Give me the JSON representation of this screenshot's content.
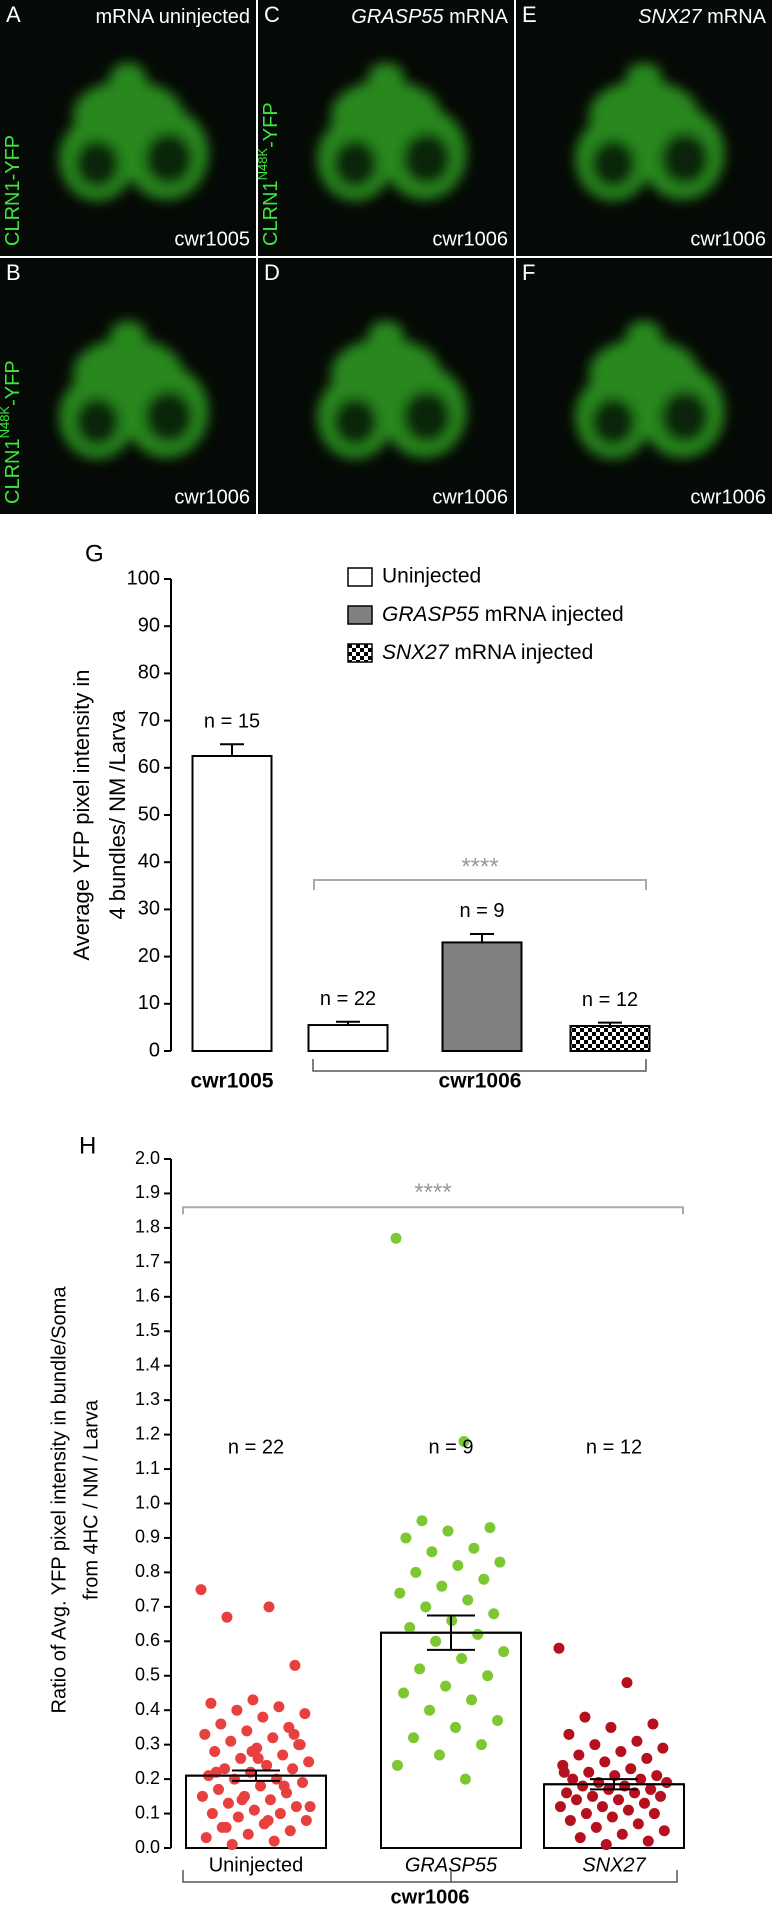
{
  "panels": [
    {
      "letter": "A",
      "title": [
        "mRNA uninjected"
      ],
      "side_label": [
        "CLRN1-YFP"
      ],
      "line": "cwr1005"
    },
    {
      "letter": "C",
      "title": [
        "GRASP55",
        " mRNA"
      ],
      "side_label": [
        "CLRN1",
        "N48K",
        "-YFP"
      ],
      "line": "cwr1006"
    },
    {
      "letter": "E",
      "title": [
        "SNX27",
        " mRNA"
      ],
      "side_label": [],
      "line": "cwr1006"
    },
    {
      "letter": "B",
      "title": [],
      "side_label": [
        "CLRN1",
        "N48K",
        "-YFP"
      ],
      "line": "cwr1006"
    },
    {
      "letter": "D",
      "title": [],
      "side_label": [],
      "line": "cwr1006"
    },
    {
      "letter": "F",
      "title": [],
      "side_label": [],
      "line": "cwr1006"
    }
  ],
  "chart_data": [
    {
      "type": "bar",
      "panel_label": "G",
      "y_label": [
        "Average YFP pixel intensity in",
        "4 bundles/ NM /Larva"
      ],
      "categories": [
        "cwr1005",
        null,
        null,
        null
      ],
      "group_label": "cwr1006",
      "n_labels": [
        "n = 15",
        "n = 22",
        "n = 9",
        "n = 12"
      ],
      "significance": "****",
      "series": [
        {
          "name": "Uninjected",
          "color": "#ffffff",
          "values": [
            62.5,
            5.5,
            null,
            null
          ],
          "errors": [
            2.5,
            0.7,
            null,
            null
          ]
        },
        {
          "name": "GRASP55 mRNA injected",
          "color": "#808080",
          "values": [
            null,
            null,
            23,
            null
          ],
          "errors": [
            null,
            null,
            1.8,
            null
          ]
        },
        {
          "name": "SNX27 mRNA injected",
          "color": "#000000",
          "pattern": "checkerboard",
          "values": [
            null,
            null,
            null,
            5.3
          ],
          "errors": [
            null,
            null,
            null,
            0.7
          ]
        }
      ],
      "ylim": [
        0,
        100
      ],
      "yticks": [
        0,
        10,
        20,
        30,
        40,
        50,
        60,
        70,
        80,
        90,
        100
      ],
      "legend": "top-right"
    },
    {
      "type": "bar-scatter",
      "panel_label": "H",
      "y_label": [
        "Ratio of Avg. YFP pixel intensity in bundle/Soma",
        "from 4HC / NM / Larva"
      ],
      "categories": [
        "Uninjected",
        "GRASP55",
        "SNX27"
      ],
      "group_label": "cwr1006",
      "n_labels": [
        "n = 22",
        "n = 9",
        "n = 12"
      ],
      "significance": "****",
      "values": [
        0.21,
        0.625,
        0.185
      ],
      "errors": [
        0.015,
        0.05,
        0.015
      ],
      "colors": [
        "#e8403f",
        "#7cc832",
        "#b5101e"
      ],
      "points": [
        [
          0.75,
          0.7,
          0.67,
          0.53,
          0.43,
          0.42,
          0.41,
          0.4,
          0.39,
          0.38,
          0.36,
          0.35,
          0.34,
          0.33,
          0.32,
          0.31,
          0.3,
          0.29,
          0.28,
          0.27,
          0.26,
          0.25,
          0.24,
          0.23,
          0.23,
          0.22,
          0.21,
          0.2,
          0.2,
          0.19,
          0.18,
          0.17,
          0.16,
          0.15,
          0.15,
          0.14,
          0.13,
          0.12,
          0.11,
          0.1,
          0.1,
          0.09,
          0.08,
          0.07,
          0.06,
          0.05,
          0.04,
          0.03,
          0.02,
          0.01,
          0.3,
          0.26,
          0.22,
          0.18,
          0.14,
          0.12,
          0.08,
          0.06,
          0.33,
          0.28
        ],
        [
          1.77,
          1.18,
          0.95,
          0.93,
          0.92,
          0.9,
          0.87,
          0.86,
          0.83,
          0.82,
          0.8,
          0.78,
          0.76,
          0.74,
          0.72,
          0.7,
          0.68,
          0.66,
          0.64,
          0.62,
          0.6,
          0.57,
          0.55,
          0.52,
          0.5,
          0.47,
          0.45,
          0.43,
          0.4,
          0.37,
          0.35,
          0.32,
          0.3,
          0.27,
          0.24,
          0.2
        ],
        [
          0.58,
          0.48,
          0.38,
          0.36,
          0.35,
          0.33,
          0.31,
          0.3,
          0.29,
          0.28,
          0.27,
          0.26,
          0.25,
          0.24,
          0.23,
          0.22,
          0.21,
          0.21,
          0.2,
          0.2,
          0.19,
          0.19,
          0.18,
          0.18,
          0.17,
          0.17,
          0.16,
          0.16,
          0.15,
          0.15,
          0.14,
          0.14,
          0.13,
          0.12,
          0.12,
          0.11,
          0.1,
          0.1,
          0.09,
          0.08,
          0.07,
          0.06,
          0.05,
          0.04,
          0.03,
          0.02,
          0.01,
          0.22
        ]
      ],
      "ylim": [
        0,
        2
      ],
      "yticks": [
        {
          "value": 0,
          "label": "0.0"
        },
        0.1,
        0.2,
        0.3,
        0.4,
        0.5,
        0.6,
        0.7,
        0.8,
        0.9,
        {
          "value": 1,
          "label": "1.0"
        },
        1.1,
        1.2,
        1.3,
        1.4,
        1.5,
        1.6,
        1.7,
        1.8,
        1.9,
        {
          "value": 2,
          "label": "2.0"
        }
      ]
    }
  ]
}
